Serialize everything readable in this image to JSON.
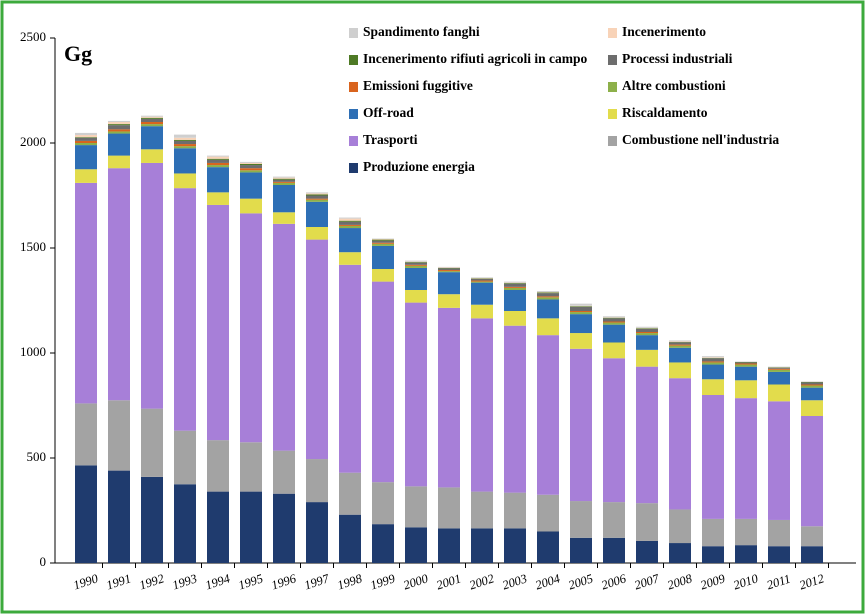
{
  "chart_data": {
    "type": "stacked_bar",
    "unit_label": "Gg",
    "categories": [
      "1990",
      "1991",
      "1992",
      "1993",
      "1994",
      "1995",
      "1996",
      "1997",
      "1998",
      "1999",
      "2000",
      "2001",
      "2002",
      "2003",
      "2004",
      "2005",
      "2006",
      "2007",
      "2008",
      "2009",
      "2010",
      "2011",
      "2012"
    ],
    "series": [
      {
        "name": "Produzione energia",
        "color": "#1f3b6e",
        "values": [
          465,
          440,
          410,
          375,
          340,
          340,
          330,
          290,
          230,
          185,
          170,
          165,
          165,
          165,
          150,
          120,
          120,
          105,
          95,
          80,
          85,
          80,
          80
        ]
      },
      {
        "name": "Combustione nell'industria",
        "color": "#a3a3a3",
        "values": [
          295,
          335,
          325,
          255,
          245,
          235,
          205,
          205,
          200,
          200,
          195,
          195,
          175,
          170,
          175,
          175,
          170,
          180,
          160,
          130,
          125,
          125,
          95
        ]
      },
      {
        "name": "Trasporti",
        "color": "#a77fd8",
        "values": [
          1050,
          1105,
          1170,
          1155,
          1120,
          1090,
          1080,
          1045,
          990,
          955,
          875,
          855,
          825,
          795,
          760,
          725,
          685,
          650,
          625,
          590,
          575,
          565,
          525
        ]
      },
      {
        "name": "Riscaldamento",
        "color": "#e2dc4c",
        "values": [
          65,
          60,
          65,
          70,
          60,
          70,
          55,
          60,
          60,
          60,
          60,
          65,
          65,
          70,
          80,
          75,
          75,
          80,
          75,
          75,
          85,
          80,
          75
        ]
      },
      {
        "name": "Off-road",
        "color": "#2e6fb5",
        "values": [
          115,
          105,
          110,
          120,
          120,
          125,
          130,
          120,
          115,
          110,
          105,
          105,
          105,
          100,
          90,
          90,
          85,
          70,
          70,
          70,
          65,
          60,
          60
        ]
      },
      {
        "name": "Altre combustioni",
        "color": "#8db04a",
        "values": [
          10,
          10,
          10,
          10,
          10,
          10,
          10,
          10,
          10,
          10,
          10,
          5,
          5,
          10,
          10,
          10,
          10,
          10,
          10,
          10,
          10,
          10,
          10
        ]
      },
      {
        "name": "Emissioni fuggitive",
        "color": "#d9641e",
        "values": [
          10,
          10,
          10,
          10,
          10,
          10,
          5,
          5,
          5,
          5,
          5,
          5,
          5,
          5,
          5,
          5,
          5,
          5,
          5,
          5,
          5,
          5,
          5
        ]
      },
      {
        "name": "Processi industriali",
        "color": "#6d6d6d",
        "values": [
          15,
          20,
          15,
          15,
          15,
          15,
          10,
          15,
          15,
          10,
          10,
          8,
          8,
          15,
          15,
          20,
          15,
          15,
          10,
          15,
          5,
          5,
          10
        ]
      },
      {
        "name": "Incenerimento rifiuti agricoli in campo",
        "color": "#4e7a25",
        "values": [
          3,
          5,
          5,
          5,
          5,
          5,
          5,
          5,
          5,
          5,
          3,
          2,
          2,
          3,
          3,
          3,
          3,
          3,
          2,
          2,
          2,
          2,
          2
        ]
      },
      {
        "name": "Incenerimento",
        "color": "#f8d3b8",
        "values": [
          10,
          10,
          5,
          10,
          10,
          5,
          5,
          5,
          10,
          3,
          2,
          2,
          2,
          2,
          2,
          2,
          2,
          2,
          3,
          3,
          1,
          1,
          1
        ]
      },
      {
        "name": "Spandimento fanghi",
        "color": "#cfcfcf",
        "values": [
          10,
          5,
          5,
          15,
          5,
          5,
          5,
          5,
          5,
          2,
          5,
          3,
          3,
          5,
          5,
          10,
          5,
          5,
          5,
          5,
          2,
          2,
          2
        ]
      }
    ],
    "ylim": [
      0,
      2500
    ],
    "yticks": [
      0,
      500,
      1000,
      1500,
      2000,
      2500
    ]
  }
}
